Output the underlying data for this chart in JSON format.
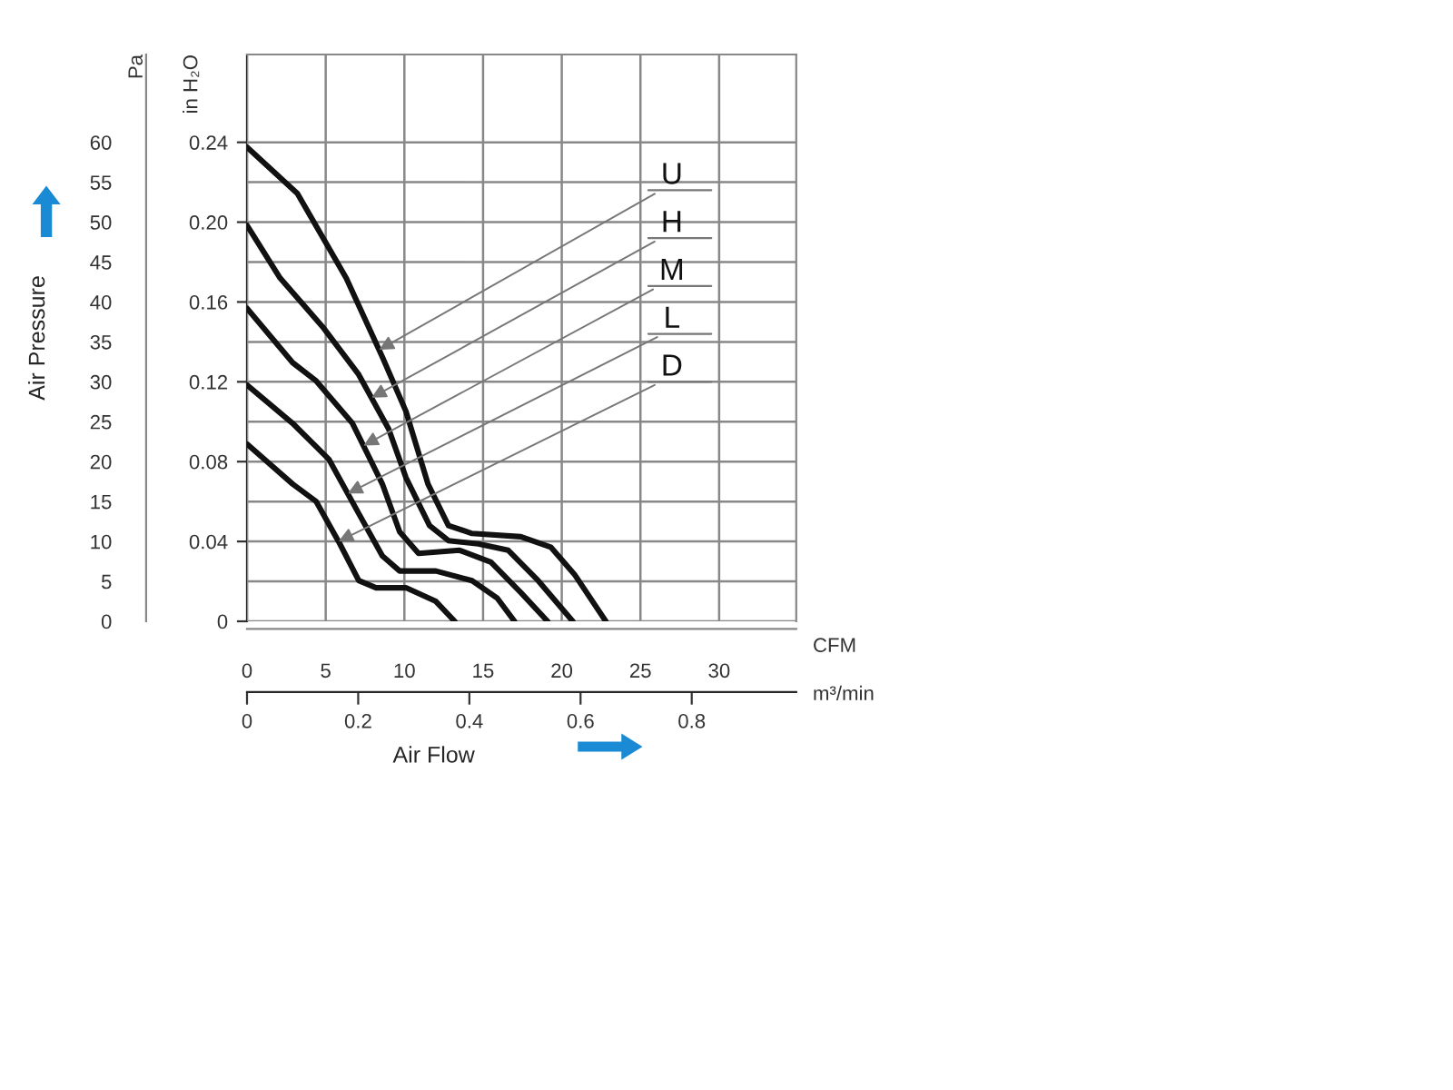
{
  "chart_data": {
    "type": "line",
    "xlabel": "Air Flow",
    "ylabel": "Air Pressure",
    "annotations": [
      "Pa",
      "in H₂O",
      "CFM",
      "m³/min"
    ],
    "xlim": [
      0,
      34.9
    ],
    "xticks": [
      0,
      5,
      10,
      15,
      20,
      25,
      30
    ],
    "ylim": [
      0,
      71
    ],
    "yticks": [
      0,
      5,
      10,
      15,
      20,
      25,
      30,
      35,
      40,
      45,
      50,
      55,
      60
    ],
    "y2lim": [
      0,
      0.284
    ],
    "y2ticks": [
      0,
      0.04,
      0.08,
      0.12,
      0.16,
      {
        "value": 0.2,
        "label": "0.20"
      },
      0.24
    ],
    "x2lim": [
      0,
      0.988
    ],
    "x2ticks": [
      0,
      0.2,
      0.4,
      0.6,
      0.8
    ],
    "grid": true,
    "legend": false,
    "marker": "none",
    "line_style": "solid",
    "series": [
      {
        "name": "U",
        "color": "#111111",
        "x": [
          0,
          3.2,
          6.3,
          8.6,
          10.1,
          11.5,
          12.8,
          14.3,
          17.4,
          19.3,
          20.8,
          22.8
        ],
        "values": [
          59.4,
          53.6,
          43,
          33.1,
          26.3,
          17.2,
          12,
          11,
          10.6,
          9.3,
          5.9,
          0
        ]
      },
      {
        "name": "H",
        "color": "#111111",
        "x": [
          0,
          2.1,
          4.8,
          7.1,
          9,
          10.1,
          11.6,
          12.8,
          14.7,
          16.6,
          18.5,
          20.7
        ],
        "values": [
          49.6,
          43,
          36.9,
          30.9,
          24.1,
          18,
          12,
          10.1,
          9.7,
          8.9,
          5.1,
          0
        ]
      },
      {
        "name": "M",
        "color": "#111111",
        "x": [
          0,
          2.9,
          4.4,
          6.7,
          8.6,
          9.7,
          10.9,
          13.5,
          15.5,
          17.4,
          19.1
        ],
        "values": [
          39.2,
          32.4,
          30.1,
          24.8,
          17.2,
          11.2,
          8.5,
          8.9,
          7.4,
          3.6,
          0
        ]
      },
      {
        "name": "L",
        "color": "#111111",
        "x": [
          0,
          2.9,
          5.2,
          7.1,
          8.6,
          9.7,
          12,
          14.3,
          15.9,
          17
        ],
        "values": [
          29.6,
          24.8,
          20.3,
          13.5,
          8.2,
          6.3,
          6.3,
          5.1,
          2.9,
          0
        ]
      },
      {
        "name": "D",
        "color": "#111111",
        "x": [
          0,
          2.9,
          4.4,
          5.9,
          7.1,
          8.2,
          10.1,
          12,
          13.2
        ],
        "values": [
          22.2,
          17.2,
          15,
          9.7,
          5.1,
          4.2,
          4.2,
          2.5,
          0
        ]
      }
    ]
  }
}
